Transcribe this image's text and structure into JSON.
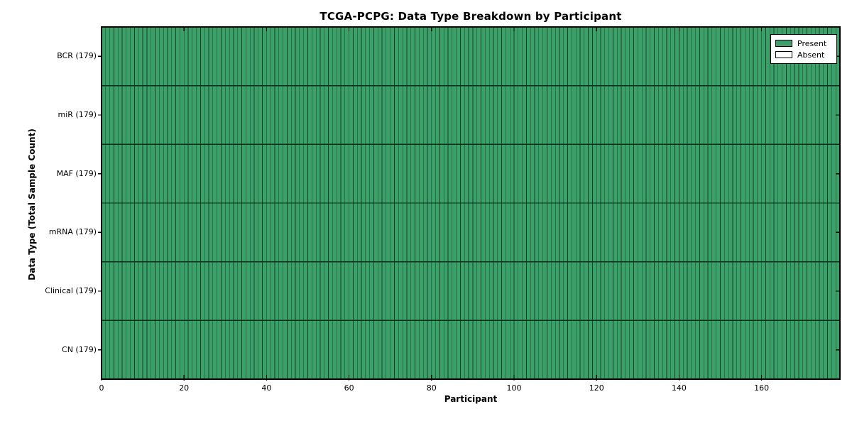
{
  "chart_data": {
    "type": "heatmap",
    "title": "TCGA-PCPG: Data Type Breakdown by Participant",
    "xlabel": "Participant",
    "ylabel": "Data Type (Total Sample Count)",
    "participants": 179,
    "xlim": [
      0,
      179
    ],
    "x_ticks": [
      0,
      20,
      40,
      60,
      80,
      100,
      120,
      140,
      160
    ],
    "rows": [
      {
        "label": "BCR (179)",
        "data_type": "BCR",
        "total": 179,
        "present": 179,
        "absent": 0
      },
      {
        "label": "miR (179)",
        "data_type": "miR",
        "total": 179,
        "present": 179,
        "absent": 0
      },
      {
        "label": "MAF (179)",
        "data_type": "MAF",
        "total": 179,
        "present": 179,
        "absent": 0
      },
      {
        "label": "mRNA (179)",
        "data_type": "mRNA",
        "total": 179,
        "present": 179,
        "absent": 0
      },
      {
        "label": "Clinical (179)",
        "data_type": "Clinical",
        "total": 179,
        "present": 179,
        "absent": 0
      },
      {
        "label": "CN (179)",
        "data_type": "CN",
        "total": 179,
        "present": 179,
        "absent": 0
      }
    ],
    "legend": [
      {
        "label": "Present",
        "color": "#3ba169"
      },
      {
        "label": "Absent",
        "color": "#ffffff"
      }
    ],
    "colors": {
      "present_fill": "#3ba169",
      "absent_fill": "#ffffff",
      "cell_edge": "#14402a",
      "row_divider": "#0d2e1d",
      "axis": "#000000"
    },
    "grid": true,
    "legend_position": "upper right"
  }
}
